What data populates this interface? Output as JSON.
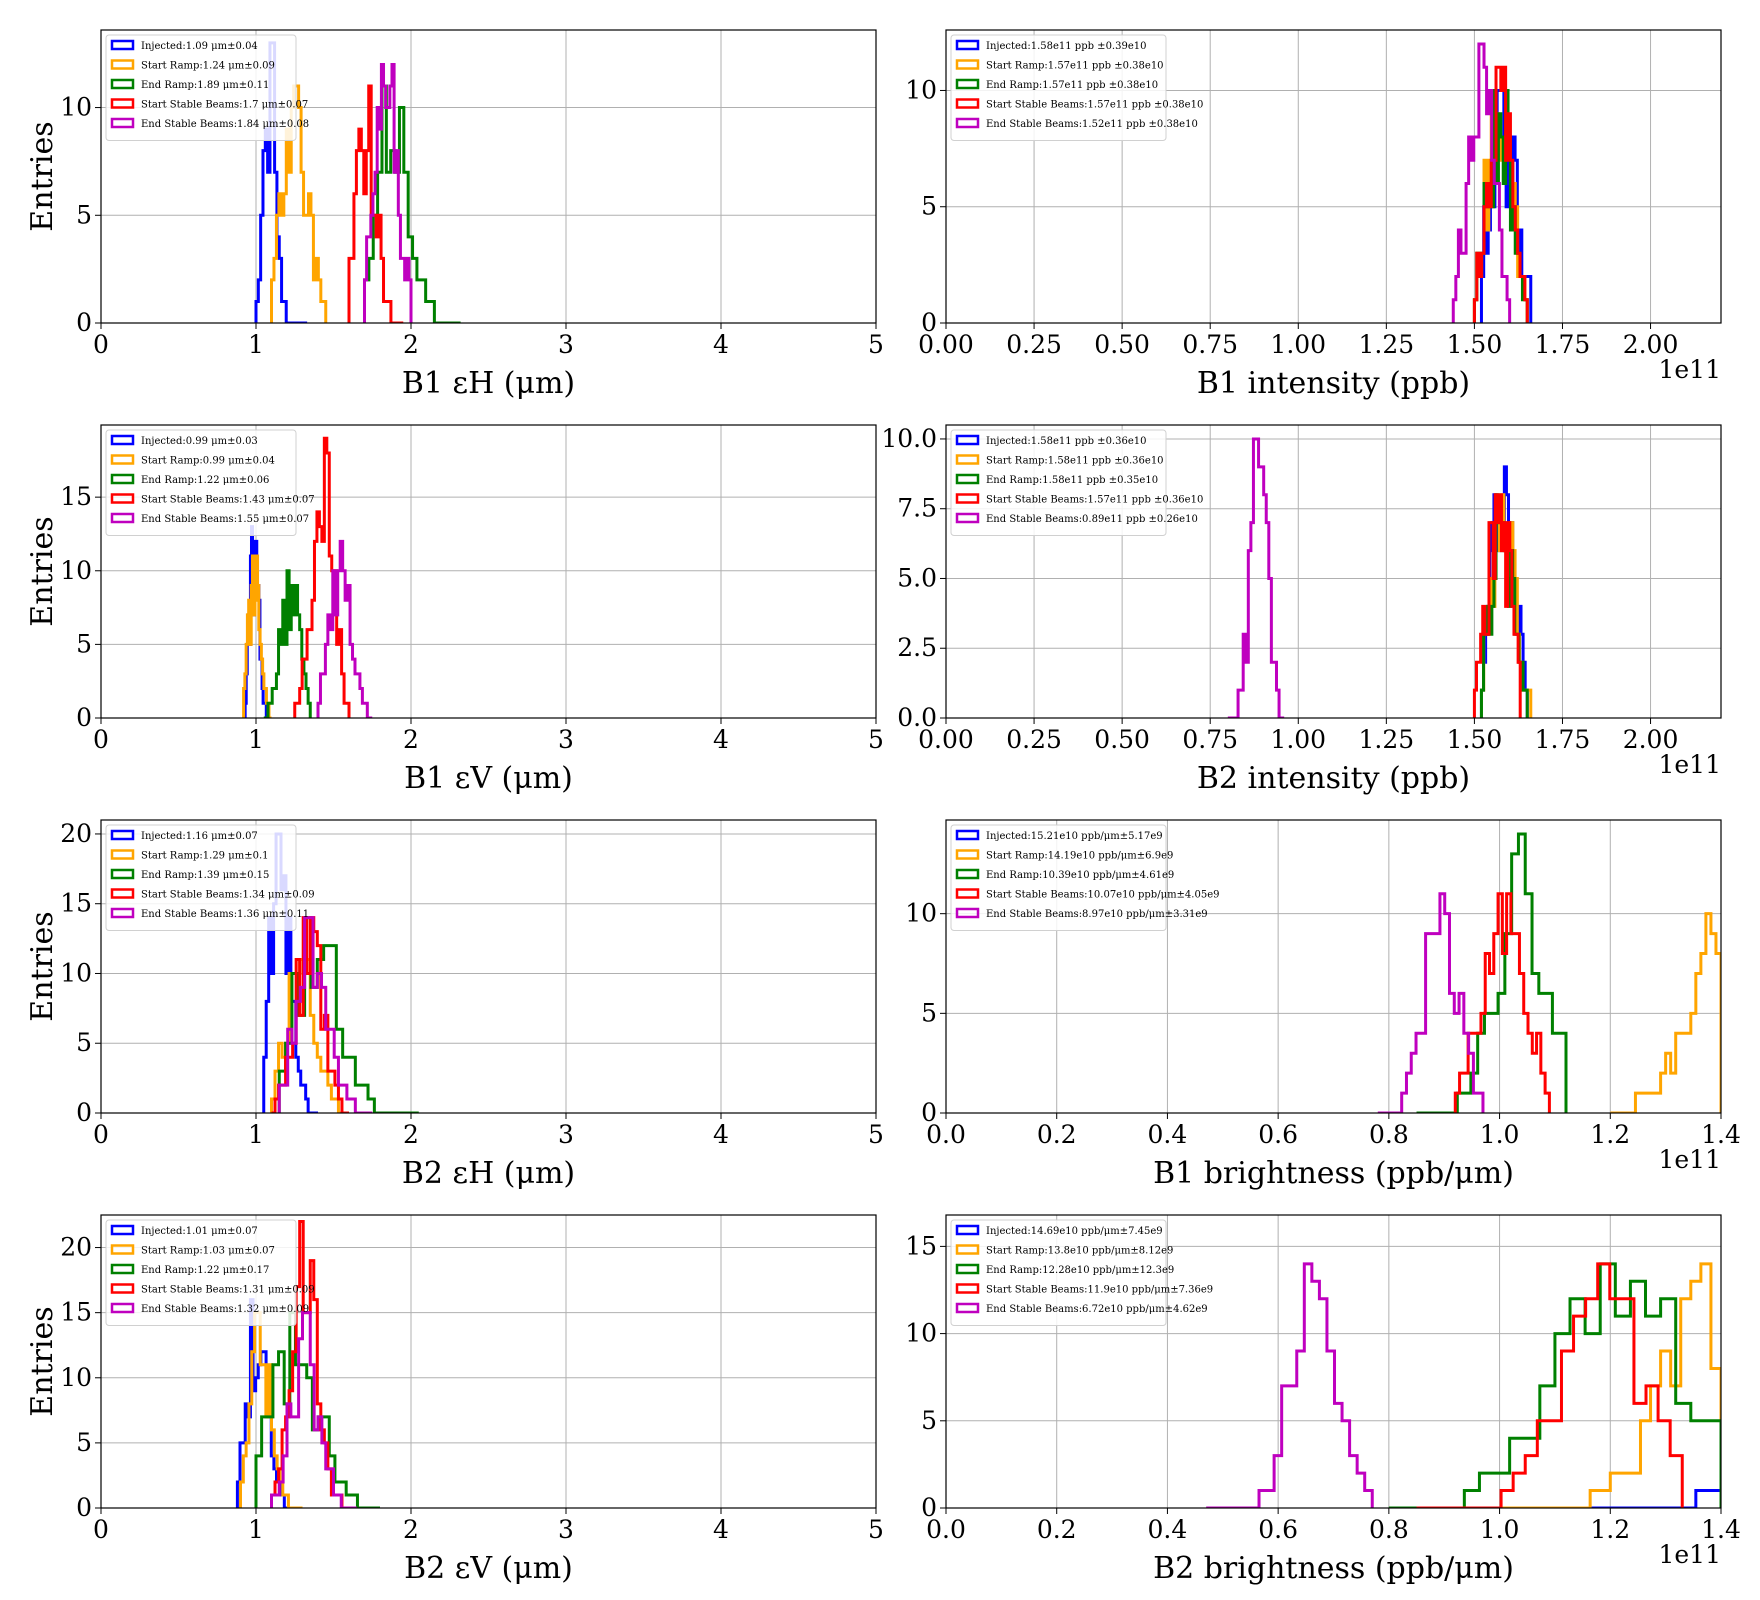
{
  "figure": {
    "background": "#ffffff"
  },
  "colors": {
    "Injected": "#0000ff",
    "Start Ramp": "#ffa500",
    "End Ramp": "#008000",
    "Start Stable Beams": "#ff0000",
    "End Stable Beams": "#bf00bf"
  },
  "chart_data": [
    {
      "type": "histogram",
      "xlabel": "B1 εH (μm)",
      "ylabel": "Entries",
      "xlim": [
        0,
        5
      ],
      "ylim": [
        0,
        13.6
      ],
      "xticks": [
        "0",
        "1",
        "2",
        "3",
        "4",
        "5"
      ],
      "yticks": [
        "0",
        "5",
        "10"
      ],
      "grid": true,
      "legend": "upper-left",
      "series": [
        {
          "name": "Injected",
          "label": "Injected:1.09 μm±0.04",
          "mean": 1.09,
          "sigma": 0.04,
          "range": [
            1.0,
            1.33
          ],
          "peak": 13
        },
        {
          "name": "Start Ramp",
          "label": "Start Ramp:1.24 μm±0.09",
          "mean": 1.24,
          "sigma": 0.09,
          "range": [
            1.1,
            1.45
          ],
          "peak": 11
        },
        {
          "name": "End Ramp",
          "label": "End Ramp:1.89 μm±0.11",
          "mean": 1.89,
          "sigma": 0.11,
          "range": [
            1.7,
            2.32
          ],
          "peak": 11
        },
        {
          "name": "Start Stable Beams",
          "label": "Start Stable Beams:1.7 μm±0.07",
          "mean": 1.7,
          "sigma": 0.07,
          "range": [
            1.6,
            1.95
          ],
          "peak": 11
        },
        {
          "name": "End Stable Beams",
          "label": "End Stable Beams:1.84 μm±0.08",
          "mean": 1.84,
          "sigma": 0.08,
          "range": [
            1.7,
            2.0
          ],
          "peak": 12
        }
      ]
    },
    {
      "type": "histogram",
      "xlabel": "B1 intensity (ppb)",
      "ylabel": "",
      "xlim": [
        0,
        2.2
      ],
      "ylim": [
        0,
        12.6
      ],
      "offset": "1e11",
      "xticks": [
        "0.00",
        "0.25",
        "0.50",
        "0.75",
        "1.00",
        "1.25",
        "1.50",
        "1.75",
        "2.00"
      ],
      "yticks": [
        "0",
        "5",
        "10"
      ],
      "grid": true,
      "legend": "upper-left",
      "series": [
        {
          "name": "Injected",
          "label": "Injected:1.58e11 ppb ±0.39e10",
          "mean": 1.58,
          "sigma": 0.039,
          "range": [
            1.52,
            1.66
          ],
          "peak": 10
        },
        {
          "name": "Start Ramp",
          "label": "Start Ramp:1.57e11 ppb ±0.38e10",
          "mean": 1.57,
          "sigma": 0.038,
          "range": [
            1.5,
            1.65
          ],
          "peak": 10
        },
        {
          "name": "End Ramp",
          "label": "End Ramp:1.57e11 ppb ±0.38e10",
          "mean": 1.57,
          "sigma": 0.038,
          "range": [
            1.5,
            1.65
          ],
          "peak": 10
        },
        {
          "name": "Start Stable Beams",
          "label": "Start Stable Beams:1.57e11 ppb ±0.38e10",
          "mean": 1.57,
          "sigma": 0.038,
          "range": [
            1.5,
            1.65
          ],
          "peak": 11
        },
        {
          "name": "End Stable Beams",
          "label": "End Stable Beams:1.52e11 ppb ±0.38e10",
          "mean": 1.52,
          "sigma": 0.038,
          "range": [
            1.44,
            1.6
          ],
          "peak": 12
        }
      ]
    },
    {
      "type": "histogram",
      "xlabel": "B1 εV (μm)",
      "ylabel": "Entries",
      "xlim": [
        0,
        5
      ],
      "ylim": [
        0,
        19.9
      ],
      "xticks": [
        "0",
        "1",
        "2",
        "3",
        "4",
        "5"
      ],
      "yticks": [
        "0",
        "5",
        "10",
        "15"
      ],
      "grid": true,
      "legend": "upper-left",
      "series": [
        {
          "name": "Injected",
          "label": "Injected:0.99 μm±0.03",
          "mean": 0.99,
          "sigma": 0.03,
          "range": [
            0.93,
            1.08
          ],
          "peak": 13
        },
        {
          "name": "Start Ramp",
          "label": "Start Ramp:0.99 μm±0.04",
          "mean": 0.99,
          "sigma": 0.04,
          "range": [
            0.92,
            1.1
          ],
          "peak": 11
        },
        {
          "name": "End Ramp",
          "label": "End Ramp:1.22 μm±0.06",
          "mean": 1.22,
          "sigma": 0.06,
          "range": [
            1.05,
            1.35
          ],
          "peak": 10
        },
        {
          "name": "Start Stable Beams",
          "label": "Start Stable Beams:1.43 μm±0.07",
          "mean": 1.43,
          "sigma": 0.07,
          "range": [
            1.25,
            1.6
          ],
          "peak": 19
        },
        {
          "name": "End Stable Beams",
          "label": "End Stable Beams:1.55 μm±0.07",
          "mean": 1.55,
          "sigma": 0.07,
          "range": [
            1.4,
            1.75
          ],
          "peak": 12
        }
      ]
    },
    {
      "type": "histogram",
      "xlabel": "B2 intensity (ppb)",
      "ylabel": "",
      "xlim": [
        0,
        2.2
      ],
      "ylim": [
        0,
        10.5
      ],
      "offset": "1e11",
      "xticks": [
        "0.00",
        "0.25",
        "0.50",
        "0.75",
        "1.00",
        "1.25",
        "1.50",
        "1.75",
        "2.00"
      ],
      "yticks": [
        "0.0",
        "2.5",
        "5.0",
        "7.5",
        "10.0"
      ],
      "grid": true,
      "legend": "upper-left",
      "series": [
        {
          "name": "Injected",
          "label": "Injected:1.58e11 ppb ±0.36e10",
          "mean": 1.58,
          "sigma": 0.036,
          "range": [
            1.52,
            1.65
          ],
          "peak": 9
        },
        {
          "name": "Start Ramp",
          "label": "Start Ramp:1.58e11 ppb ±0.36e10",
          "mean": 1.58,
          "sigma": 0.036,
          "range": [
            1.52,
            1.66
          ],
          "peak": 8
        },
        {
          "name": "End Ramp",
          "label": "End Ramp:1.58e11 ppb ±0.35e10",
          "mean": 1.58,
          "sigma": 0.035,
          "range": [
            1.52,
            1.65
          ],
          "peak": 8
        },
        {
          "name": "Start Stable Beams",
          "label": "Start Stable Beams:1.57e11 ppb ±0.36e10",
          "mean": 1.57,
          "sigma": 0.036,
          "range": [
            1.5,
            1.63
          ],
          "peak": 8
        },
        {
          "name": "End Stable Beams",
          "label": "End Stable Beams:0.89e11 ppb ±0.26e10",
          "mean": 0.89,
          "sigma": 0.026,
          "range": [
            0.8,
            0.96
          ],
          "peak": 10
        }
      ]
    },
    {
      "type": "histogram",
      "xlabel": "B2 εH (μm)",
      "ylabel": "Entries",
      "xlim": [
        0,
        5
      ],
      "ylim": [
        0,
        21
      ],
      "xticks": [
        "0",
        "1",
        "2",
        "3",
        "4",
        "5"
      ],
      "yticks": [
        "0",
        "5",
        "10",
        "15",
        "20"
      ],
      "grid": true,
      "legend": "upper-left",
      "series": [
        {
          "name": "Injected",
          "label": "Injected:1.16 μm±0.07",
          "mean": 1.16,
          "sigma": 0.07,
          "range": [
            1.05,
            1.4
          ],
          "peak": 20
        },
        {
          "name": "Start Ramp",
          "label": "Start Ramp:1.29 μm±0.1",
          "mean": 1.29,
          "sigma": 0.1,
          "range": [
            1.1,
            1.6
          ],
          "peak": 11
        },
        {
          "name": "End Ramp",
          "label": "End Ramp:1.39 μm±0.15",
          "mean": 1.39,
          "sigma": 0.15,
          "range": [
            1.15,
            2.05
          ],
          "peak": 14
        },
        {
          "name": "Start Stable Beams",
          "label": "Start Stable Beams:1.34 μm±0.09",
          "mean": 1.34,
          "sigma": 0.09,
          "range": [
            1.1,
            1.6
          ],
          "peak": 14
        },
        {
          "name": "End Stable Beams",
          "label": "End Stable Beams:1.36 μm±0.11",
          "mean": 1.36,
          "sigma": 0.11,
          "range": [
            1.15,
            1.75
          ],
          "peak": 14
        }
      ]
    },
    {
      "type": "histogram",
      "xlabel": "B1 brightness (ppb/μm)",
      "ylabel": "",
      "xlim": [
        0,
        1.4
      ],
      "ylim": [
        0,
        14.7
      ],
      "offset": "1e11",
      "xticks": [
        "0.0",
        "0.2",
        "0.4",
        "0.6",
        "0.8",
        "1.0",
        "1.2",
        "1.4"
      ],
      "yticks": [
        "0",
        "5",
        "10"
      ],
      "grid": true,
      "legend": "upper-left",
      "series": [
        {
          "name": "Injected",
          "label": "Injected:15.21e10 ppb/μm±5.17e9",
          "mean": 1.521,
          "sigma": 0.0517,
          "range": [
            1.45,
            1.6
          ],
          "peak": 0
        },
        {
          "name": "Start Ramp",
          "label": "Start Ramp:14.19e10 ppb/μm±6.9e9",
          "mean": 1.419,
          "sigma": 0.069,
          "range": [
            1.2,
            1.4
          ],
          "peak": 10
        },
        {
          "name": "End Ramp",
          "label": "End Ramp:10.39e10 ppb/μm±4.61e9",
          "mean": 1.039,
          "sigma": 0.0461,
          "range": [
            0.85,
            1.12
          ],
          "peak": 14
        },
        {
          "name": "Start Stable Beams",
          "label": "Start Stable Beams:10.07e10 ppb/μm±4.05e9",
          "mean": 1.007,
          "sigma": 0.0405,
          "range": [
            0.92,
            1.09
          ],
          "peak": 11
        },
        {
          "name": "End Stable Beams",
          "label": "End Stable Beams:8.97e10 ppb/μm±3.31e9",
          "mean": 0.897,
          "sigma": 0.0331,
          "range": [
            0.78,
            0.97
          ],
          "peak": 11
        }
      ]
    },
    {
      "type": "histogram",
      "xlabel": "B2 εV (μm)",
      "ylabel": "Entries",
      "xlim": [
        0,
        5
      ],
      "ylim": [
        0,
        22.5
      ],
      "xticks": [
        "0",
        "1",
        "2",
        "3",
        "4",
        "5"
      ],
      "yticks": [
        "0",
        "5",
        "10",
        "15",
        "20"
      ],
      "grid": true,
      "legend": "upper-left",
      "series": [
        {
          "name": "Injected",
          "label": "Injected:1.01 μm±0.07",
          "mean": 1.01,
          "sigma": 0.07,
          "range": [
            0.88,
            1.25
          ],
          "peak": 16
        },
        {
          "name": "Start Ramp",
          "label": "Start Ramp:1.03 μm±0.07",
          "mean": 1.03,
          "sigma": 0.07,
          "range": [
            0.9,
            1.3
          ],
          "peak": 15
        },
        {
          "name": "End Ramp",
          "label": "End Ramp:1.22 μm±0.17",
          "mean": 1.22,
          "sigma": 0.17,
          "range": [
            1.0,
            1.8
          ],
          "peak": 15
        },
        {
          "name": "Start Stable Beams",
          "label": "Start Stable Beams:1.31 μm±0.09",
          "mean": 1.31,
          "sigma": 0.09,
          "range": [
            1.1,
            1.6
          ],
          "peak": 22
        },
        {
          "name": "End Stable Beams",
          "label": "End Stable Beams:1.32 μm±0.09",
          "mean": 1.32,
          "sigma": 0.09,
          "range": [
            1.1,
            1.65
          ],
          "peak": 15
        }
      ]
    },
    {
      "type": "histogram",
      "xlabel": "B2 brightness (ppb/μm)",
      "ylabel": "",
      "xlim": [
        0,
        1.4
      ],
      "ylim": [
        0,
        16.8
      ],
      "offset": "1e11",
      "xticks": [
        "0.0",
        "0.2",
        "0.4",
        "0.6",
        "0.8",
        "1.0",
        "1.2",
        "1.4"
      ],
      "yticks": [
        "0",
        "5",
        "10",
        "15"
      ],
      "grid": true,
      "legend": "upper-left",
      "series": [
        {
          "name": "Injected",
          "label": "Injected:14.69e10 ppb/μm±7.45e9",
          "mean": 1.469,
          "sigma": 0.0745,
          "range": [
            1.15,
            1.6
          ],
          "peak": 2
        },
        {
          "name": "Start Ramp",
          "label": "Start Ramp:13.8e10 ppb/μm±8.12e9",
          "mean": 1.38,
          "sigma": 0.0812,
          "range": [
            1.0,
            1.4
          ],
          "peak": 14
        },
        {
          "name": "End Ramp",
          "label": "End Ramp:12.28e10 ppb/μm±12.3e9",
          "mean": 1.228,
          "sigma": 0.123,
          "range": [
            0.8,
            1.4
          ],
          "peak": 14
        },
        {
          "name": "Start Stable Beams",
          "label": "Start Stable Beams:11.9e10 ppb/μm±7.36e9",
          "mean": 1.19,
          "sigma": 0.0736,
          "range": [
            0.85,
            1.33
          ],
          "peak": 14
        },
        {
          "name": "End Stable Beams",
          "label": "End Stable Beams:6.72e10 ppb/μm±4.62e9",
          "mean": 0.672,
          "sigma": 0.0462,
          "range": [
            0.47,
            0.77
          ],
          "peak": 14
        }
      ]
    }
  ]
}
